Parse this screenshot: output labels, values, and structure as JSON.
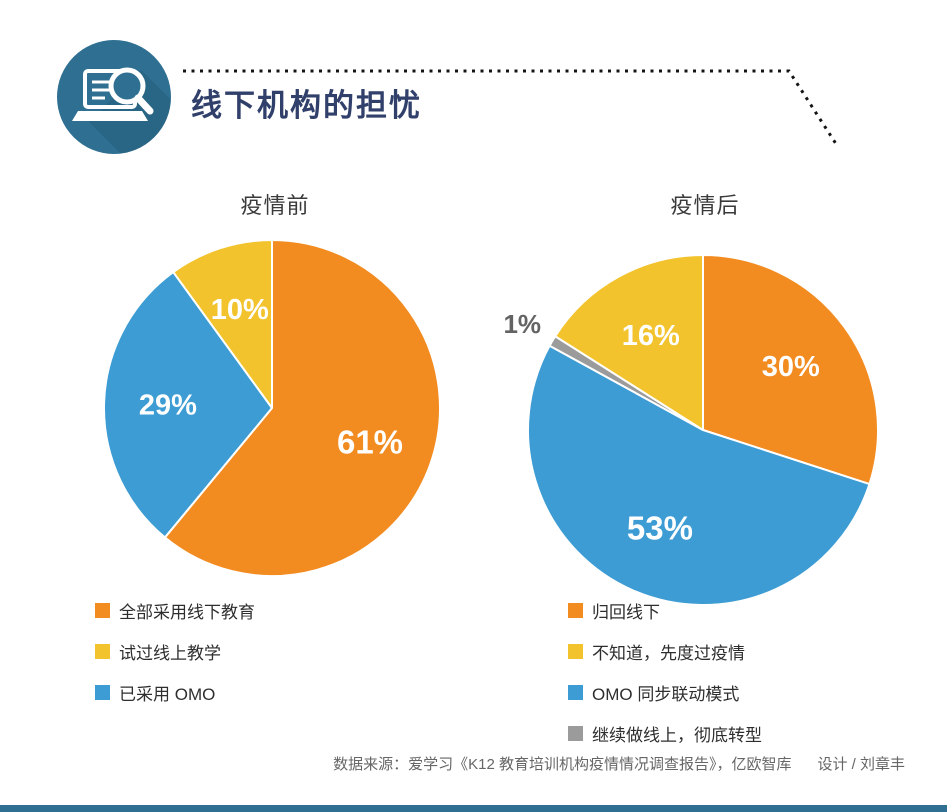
{
  "page": {
    "title": "线下机构的担忧",
    "footer_source": "数据来源：爱学习《K12 教育培训机构疫情情况调查报告》，亿欧智库",
    "footer_designer": "设计 / 刘章丰"
  },
  "icons": {
    "header_icon": "laptop-magnifier-icon"
  },
  "colors": {
    "orange": "#F28B20",
    "blue": "#3D9CD3",
    "yellow": "#F2C32C",
    "gray": "#9B9B9B",
    "title_navy": "#30406B",
    "steel_blue": "#2E6F92",
    "footer_gray": "#666666"
  },
  "chart_data": [
    {
      "type": "pie",
      "title": "疫情前",
      "direction": "clockwise",
      "start_angle_deg": 0,
      "legend_position": "bottom-left",
      "series": [
        {
          "label": "全部采用线下教育",
          "value": 61,
          "display": "61%",
          "color": "#F28B20"
        },
        {
          "label": "已采用 OMO",
          "value": 29,
          "display": "29%",
          "color": "#3D9CD3"
        },
        {
          "label": "试过线上教学",
          "value": 10,
          "display": "10%",
          "color": "#F2C32C"
        }
      ],
      "legend": [
        {
          "label": "全部采用线下教育",
          "color": "#F28B20"
        },
        {
          "label": "试过线上教学",
          "color": "#F2C32C"
        },
        {
          "label": "已采用 OMO",
          "color": "#3D9CD3"
        }
      ]
    },
    {
      "type": "pie",
      "title": "疫情后",
      "direction": "clockwise",
      "start_angle_deg": 0,
      "legend_position": "bottom-left",
      "series": [
        {
          "label": "归回线下",
          "value": 30,
          "display": "30%",
          "color": "#F28B20"
        },
        {
          "label": "OMO 同步联动模式",
          "value": 53,
          "display": "53%",
          "color": "#3D9CD3"
        },
        {
          "label": "继续做线上，彻底转型",
          "value": 1,
          "display": "1%",
          "color": "#9B9B9B"
        },
        {
          "label": "不知道，先度过疫情",
          "value": 16,
          "display": "16%",
          "color": "#F2C32C"
        }
      ],
      "legend": [
        {
          "label": "归回线下",
          "color": "#F28B20"
        },
        {
          "label": "不知道，先度过疫情",
          "color": "#F2C32C"
        },
        {
          "label": "OMO 同步联动模式",
          "color": "#3D9CD3"
        },
        {
          "label": "继续做线上，彻底转型",
          "color": "#9B9B9B"
        }
      ]
    }
  ]
}
